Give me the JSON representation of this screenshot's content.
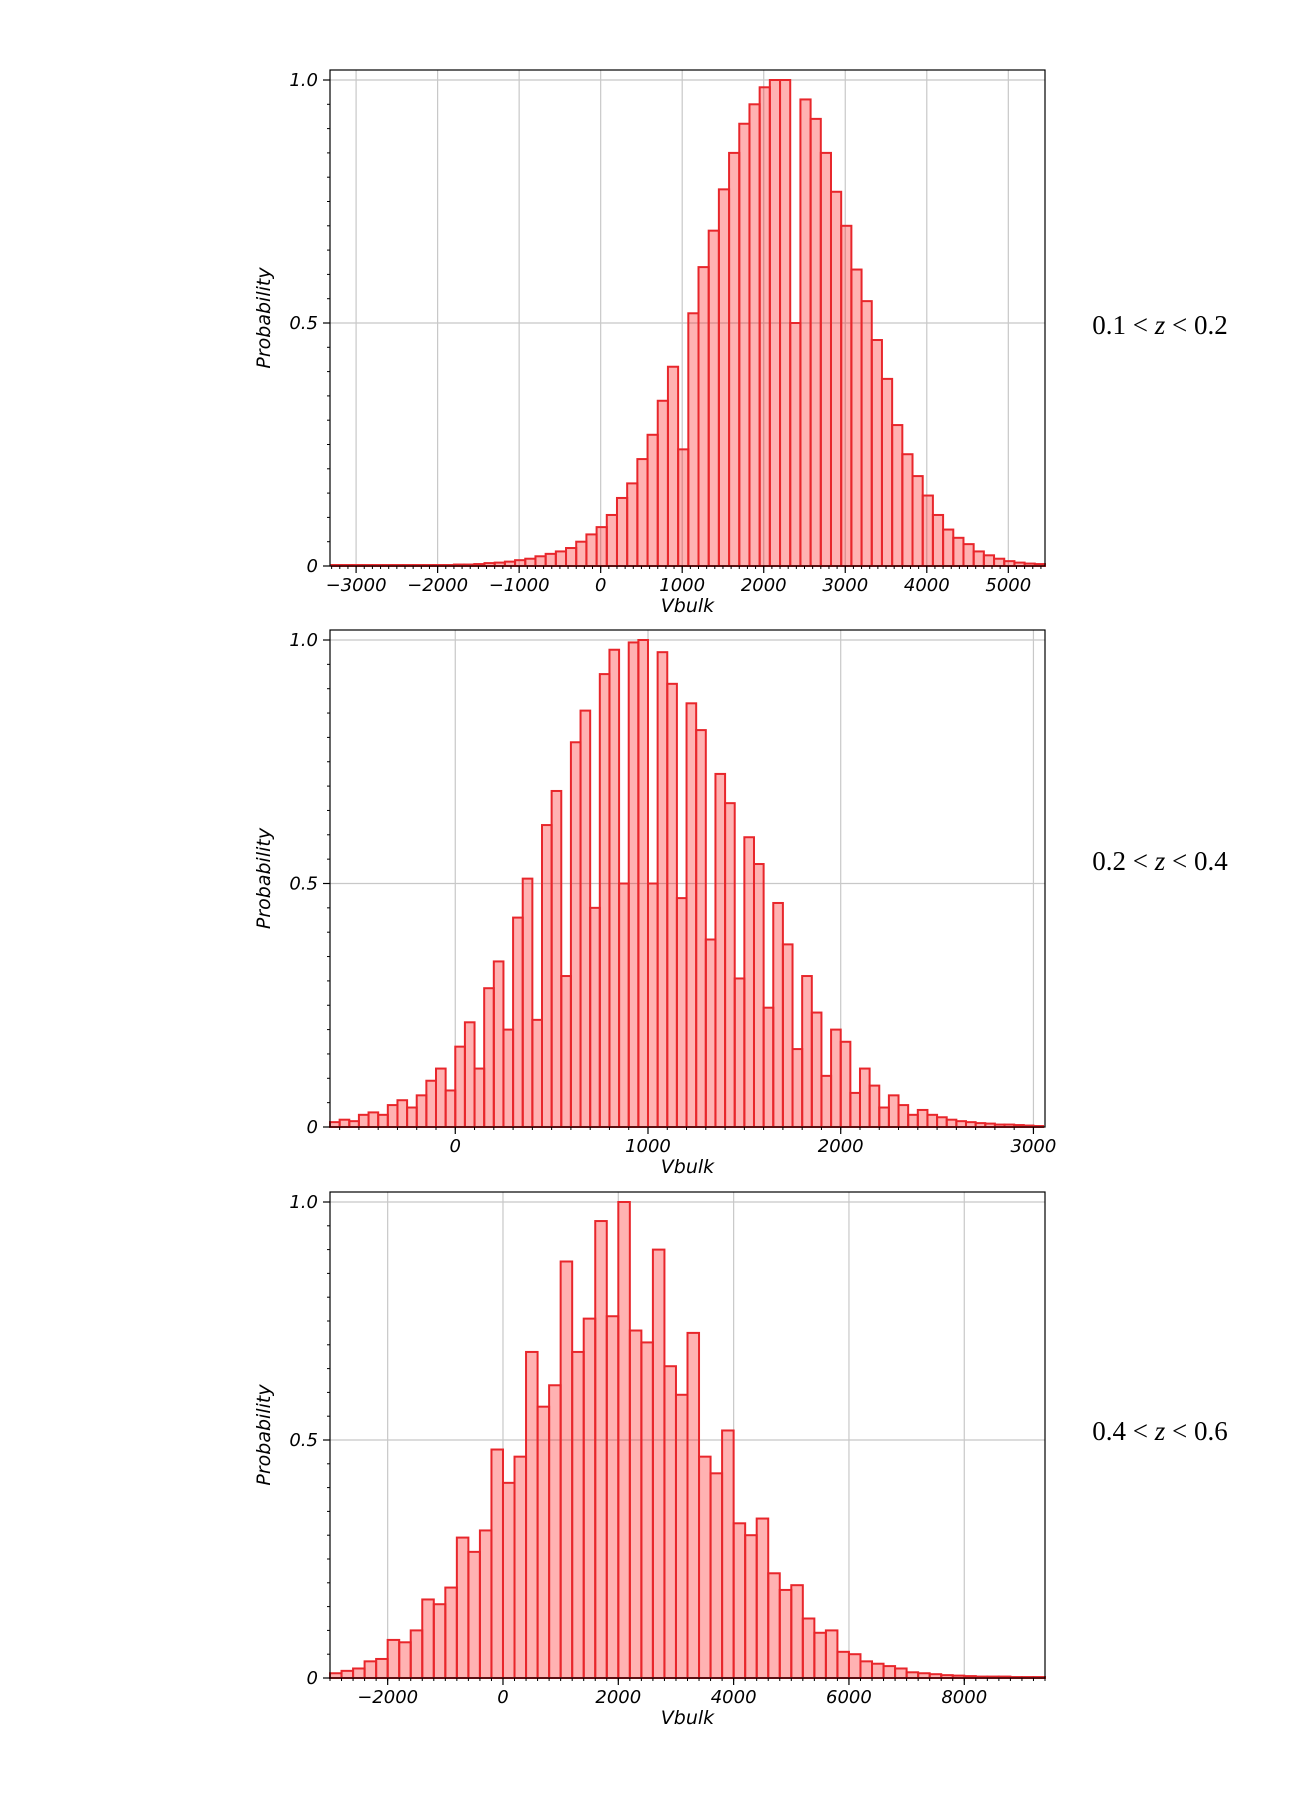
{
  "chart_data": [
    {
      "type": "bar",
      "xlabel": "Vbulk",
      "ylabel": "Probability",
      "range_label": {
        "prefix": "0.1 < ",
        "variable": "z",
        "suffix": " < 0.2"
      },
      "xlim": [
        -3320,
        5450
      ],
      "ylim": [
        0,
        1.0
      ],
      "xticks": [
        -3000,
        -2000,
        -1000,
        0,
        1000,
        2000,
        3000,
        4000,
        5000
      ],
      "xtick_labels": [
        "−3000",
        "−2000",
        "−1000",
        "0",
        "1000",
        "2000",
        "3000",
        "4000",
        "5000"
      ],
      "yticks": [
        0,
        0.5,
        1.0
      ],
      "ytick_labels": [
        "0",
        "0.5",
        "1.0"
      ],
      "bin_start": -3300,
      "bin_width": 125,
      "values": [
        0.002,
        0.002,
        0.002,
        0.002,
        0.002,
        0.002,
        0.002,
        0.002,
        0.002,
        0.002,
        0.002,
        0.002,
        0.003,
        0.003,
        0.004,
        0.006,
        0.007,
        0.009,
        0.012,
        0.015,
        0.02,
        0.025,
        0.03,
        0.037,
        0.05,
        0.065,
        0.08,
        0.105,
        0.14,
        0.17,
        0.22,
        0.27,
        0.34,
        0.41,
        0.24,
        0.52,
        0.615,
        0.69,
        0.775,
        0.85,
        0.91,
        0.95,
        0.985,
        1.0,
        1.0,
        0.5,
        0.96,
        0.92,
        0.85,
        0.77,
        0.7,
        0.61,
        0.545,
        0.465,
        0.385,
        0.29,
        0.23,
        0.185,
        0.145,
        0.105,
        0.075,
        0.058,
        0.045,
        0.03,
        0.022,
        0.015,
        0.01,
        0.007,
        0.005,
        0.004,
        0.003,
        0.002,
        0.002,
        0.002,
        0.002,
        0.002,
        0.002,
        0.002,
        0.002,
        0.002,
        0.002,
        0.002,
        0.002,
        0.002,
        0.002,
        0.002,
        0.002,
        0.002,
        0.002,
        0.002
      ]
    },
    {
      "type": "bar",
      "xlabel": "Vbulk",
      "ylabel": "Probability",
      "range_label": {
        "prefix": "0.2 < ",
        "variable": "z",
        "suffix": " < 0.4"
      },
      "xlim": [
        -650,
        3060
      ],
      "ylim": [
        0,
        1.0
      ],
      "xticks": [
        0,
        1000,
        2000,
        3000
      ],
      "xtick_labels": [
        "0",
        "1000",
        "2000",
        "3000"
      ],
      "yticks": [
        0,
        0.5,
        1.0
      ],
      "ytick_labels": [
        "0",
        "0.5",
        "1.0"
      ],
      "bin_start": -650,
      "bin_width": 50,
      "values": [
        0.01,
        0.015,
        0.012,
        0.025,
        0.03,
        0.025,
        0.045,
        0.055,
        0.04,
        0.065,
        0.095,
        0.12,
        0.075,
        0.165,
        0.215,
        0.12,
        0.285,
        0.34,
        0.2,
        0.43,
        0.51,
        0.22,
        0.62,
        0.69,
        0.31,
        0.79,
        0.855,
        0.45,
        0.93,
        0.98,
        0.5,
        0.995,
        1.0,
        0.5,
        0.975,
        0.91,
        0.47,
        0.87,
        0.815,
        0.385,
        0.725,
        0.665,
        0.305,
        0.595,
        0.54,
        0.245,
        0.46,
        0.375,
        0.16,
        0.31,
        0.235,
        0.105,
        0.2,
        0.175,
        0.07,
        0.12,
        0.085,
        0.04,
        0.065,
        0.045,
        0.025,
        0.035,
        0.025,
        0.02,
        0.015,
        0.012,
        0.01,
        0.008,
        0.007,
        0.005,
        0.005,
        0.004,
        0.003,
        0.002
      ]
    },
    {
      "type": "bar",
      "xlabel": "Vbulk",
      "ylabel": "Probability",
      "range_label": {
        "prefix": "0.4 < ",
        "variable": "z",
        "suffix": " < 0.6"
      },
      "xlim": [
        -3000,
        9400
      ],
      "ylim": [
        0,
        1.0
      ],
      "xticks": [
        -2000,
        0,
        2000,
        4000,
        6000,
        8000
      ],
      "xtick_labels": [
        "−2000",
        "0",
        "2000",
        "4000",
        "6000",
        "8000"
      ],
      "yticks": [
        0,
        0.5,
        1.0
      ],
      "ytick_labels": [
        "0",
        "0.5",
        "1.0"
      ],
      "bin_start": -3000,
      "bin_width": 200,
      "values": [
        0.01,
        0.015,
        0.02,
        0.035,
        0.04,
        0.08,
        0.075,
        0.1,
        0.165,
        0.155,
        0.19,
        0.295,
        0.265,
        0.31,
        0.48,
        0.41,
        0.465,
        0.685,
        0.57,
        0.615,
        0.875,
        0.685,
        0.755,
        0.96,
        0.76,
        1.0,
        0.73,
        0.705,
        0.9,
        0.655,
        0.595,
        0.725,
        0.465,
        0.43,
        0.52,
        0.325,
        0.3,
        0.335,
        0.22,
        0.185,
        0.195,
        0.125,
        0.095,
        0.1,
        0.055,
        0.05,
        0.035,
        0.03,
        0.025,
        0.02,
        0.012,
        0.01,
        0.008,
        0.006,
        0.005,
        0.004,
        0.003,
        0.003,
        0.003,
        0.002,
        0.002,
        0.002
      ]
    }
  ]
}
